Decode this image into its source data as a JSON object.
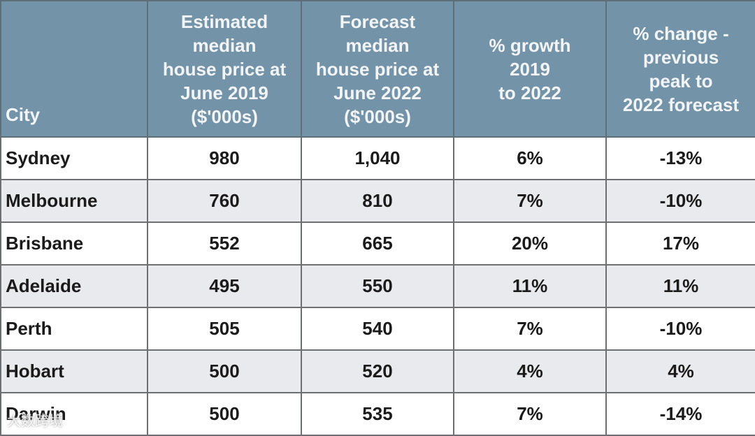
{
  "table": {
    "header": [
      "City",
      "Estimated\nmedian\nhouse price at\nJune 2019\n($'000s)",
      "Forecast\nmedian\nhouse price at\nJune 2022\n($'000s)",
      "% growth\n2019\nto 2022",
      "% change -\nprevious\npeak to\n2022 forecast"
    ],
    "rows": [
      [
        "Sydney",
        "980",
        "1,040",
        "6%",
        "-13%"
      ],
      [
        "Melbourne",
        "760",
        "810",
        "7%",
        "-10%"
      ],
      [
        "Brisbane",
        "552",
        "665",
        "20%",
        "17%"
      ],
      [
        "Adelaide",
        "495",
        "550",
        "11%",
        "11%"
      ],
      [
        "Perth",
        "505",
        "540",
        "7%",
        "-10%"
      ],
      [
        "Hobart",
        "500",
        "520",
        "4%",
        "4%"
      ],
      [
        "Darwin",
        "500",
        "535",
        "7%",
        "-14%"
      ]
    ]
  },
  "watermark": "大数跨境"
}
